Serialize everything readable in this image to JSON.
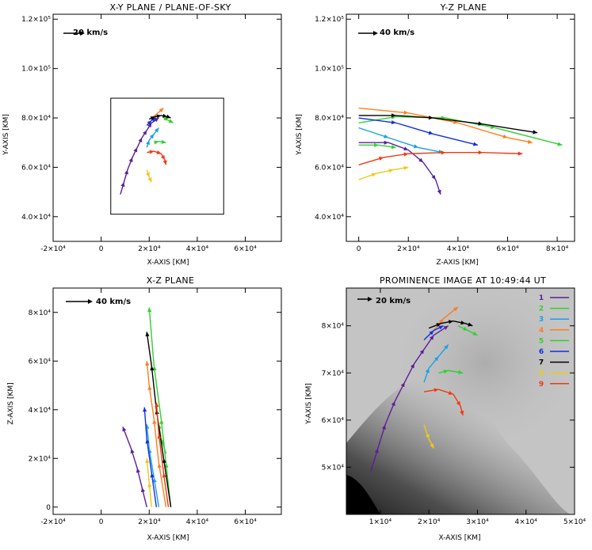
{
  "chart_data": [
    {
      "type": "line",
      "title": "X-Y PLANE / PLANE-OF-SKY",
      "xlabel": "X-AXIS [KM]",
      "ylabel": "Y-AXIS [KM]",
      "velocity_label": "20 km/s",
      "xlim": [
        -20000,
        75000
      ],
      "ylim": [
        30000,
        122000
      ],
      "xticks": [
        {
          "v": -20000,
          "label": "-2×10⁴"
        },
        {
          "v": 0,
          "label": "0"
        },
        {
          "v": 20000,
          "label": "2×10⁴"
        },
        {
          "v": 40000,
          "label": "4×10⁴"
        },
        {
          "v": 60000,
          "label": "6×10⁴"
        }
      ],
      "yticks": [
        {
          "v": 40000,
          "label": "4.0×10⁴"
        },
        {
          "v": 60000,
          "label": "6.0×10⁴"
        },
        {
          "v": 80000,
          "label": "8.0×10⁴"
        },
        {
          "v": 100000,
          "label": "1.0×10⁵"
        },
        {
          "v": 120000,
          "label": "1.2×10⁵"
        }
      ],
      "box": {
        "x0": 4000,
        "x1": 51000,
        "y0": 41000,
        "y1": 88000
      },
      "series": [
        {
          "name": "1",
          "color": "#5a1f9a",
          "points": [
            [
              8000,
              49000
            ],
            [
              9500,
              54000
            ],
            [
              11000,
              59000
            ],
            [
              13000,
              64000
            ],
            [
              15000,
              68000
            ],
            [
              17000,
              72000
            ],
            [
              19000,
              75000
            ],
            [
              21000,
              78000
            ],
            [
              24000,
              80000
            ]
          ]
        },
        {
          "name": "2",
          "color": "#30d030",
          "points": [
            [
              22000,
              70000
            ],
            [
              24000,
              70500
            ],
            [
              27000,
              70000
            ]
          ]
        },
        {
          "name": "3",
          "color": "#19a0e8",
          "points": [
            [
              19000,
              68000
            ],
            [
              20000,
              71000
            ],
            [
              22000,
              73500
            ],
            [
              24000,
              76000
            ]
          ]
        },
        {
          "name": "4",
          "color": "#ff7d1a",
          "points": [
            [
              21000,
              79000
            ],
            [
              23000,
              81500
            ],
            [
              26000,
              84000
            ]
          ]
        },
        {
          "name": "5",
          "color": "#30d030",
          "points": [
            [
              26000,
              80000
            ],
            [
              28000,
              79000
            ],
            [
              30000,
              78000
            ]
          ]
        },
        {
          "name": "6",
          "color": "#1030e0",
          "points": [
            [
              19000,
              77000
            ],
            [
              21000,
              79000
            ],
            [
              23000,
              80000
            ]
          ]
        },
        {
          "name": "7",
          "color": "#000000",
          "points": [
            [
              20000,
              79500
            ],
            [
              22500,
              80500
            ],
            [
              25000,
              81000
            ],
            [
              27500,
              80500
            ],
            [
              29000,
              80000
            ]
          ]
        },
        {
          "name": "8",
          "color": "#f0c818",
          "points": [
            [
              19000,
              59000
            ],
            [
              20000,
              56000
            ],
            [
              21000,
              54000
            ]
          ]
        },
        {
          "name": "9",
          "color": "#ee3a12",
          "points": [
            [
              19000,
              66000
            ],
            [
              22000,
              66500
            ],
            [
              25000,
              65500
            ],
            [
              26500,
              63000
            ],
            [
              27000,
              61000
            ]
          ]
        }
      ]
    },
    {
      "type": "line",
      "title": "Y-Z PLANE",
      "xlabel": "Z-AXIS [KM]",
      "ylabel": "Y-AXIS [KM]",
      "velocity_label": "40 km/s",
      "xlim": [
        -5000,
        87000
      ],
      "ylim": [
        30000,
        122000
      ],
      "xticks": [
        {
          "v": 0,
          "label": "0"
        },
        {
          "v": 20000,
          "label": "2×10⁴"
        },
        {
          "v": 40000,
          "label": "4×10⁴"
        },
        {
          "v": 60000,
          "label": "6×10⁴"
        },
        {
          "v": 80000,
          "label": "8×10⁴"
        }
      ],
      "yticks": [
        {
          "v": 40000,
          "label": "4.0×10⁴"
        },
        {
          "v": 60000,
          "label": "6.0×10⁴"
        },
        {
          "v": 80000,
          "label": "8.0×10⁴"
        },
        {
          "v": 100000,
          "label": "1.0×10⁵"
        },
        {
          "v": 120000,
          "label": "1.2×10⁵"
        }
      ],
      "series": [
        {
          "name": "1",
          "color": "#5a1f9a",
          "points": [
            [
              0,
              70000
            ],
            [
              12000,
              70000
            ],
            [
              20000,
              67000
            ],
            [
              26000,
              62000
            ],
            [
              31000,
              55000
            ],
            [
              33000,
              49000
            ]
          ]
        },
        {
          "name": "2",
          "color": "#30d030",
          "points": [
            [
              0,
              69000
            ],
            [
              8000,
              69000
            ],
            [
              15000,
              68000
            ]
          ]
        },
        {
          "name": "3",
          "color": "#19a0e8",
          "points": [
            [
              0,
              76000
            ],
            [
              12000,
              72000
            ],
            [
              24000,
              68000
            ],
            [
              34000,
              66000
            ]
          ]
        },
        {
          "name": "4",
          "color": "#ff7d1a",
          "points": [
            [
              0,
              84000
            ],
            [
              20000,
              82000
            ],
            [
              40000,
              78000
            ],
            [
              60000,
              72000
            ],
            [
              70000,
              70000
            ]
          ]
        },
        {
          "name": "5",
          "color": "#30d030",
          "points": [
            [
              0,
              78000
            ],
            [
              15000,
              80500
            ],
            [
              35000,
              80000
            ],
            [
              55000,
              76000
            ],
            [
              82000,
              69000
            ]
          ]
        },
        {
          "name": "6",
          "color": "#1030e0",
          "points": [
            [
              0,
              80000
            ],
            [
              15000,
              78000
            ],
            [
              30000,
              73500
            ],
            [
              48000,
              69000
            ]
          ]
        },
        {
          "name": "7",
          "color": "#000000",
          "points": [
            [
              0,
              81000
            ],
            [
              15000,
              81000
            ],
            [
              30000,
              80000
            ],
            [
              50000,
              77500
            ],
            [
              72000,
              74000
            ]
          ]
        },
        {
          "name": "8",
          "color": "#f0c818",
          "points": [
            [
              0,
              55000
            ],
            [
              7000,
              57500
            ],
            [
              14000,
              59000
            ],
            [
              20000,
              60000
            ]
          ]
        },
        {
          "name": "9",
          "color": "#ee3a12",
          "points": [
            [
              0,
              61000
            ],
            [
              10000,
              64000
            ],
            [
              20000,
              65500
            ],
            [
              35000,
              66000
            ],
            [
              50000,
              66000
            ],
            [
              66000,
              65500
            ]
          ]
        }
      ]
    },
    {
      "type": "line",
      "title": "X-Z PLANE",
      "xlabel": "X-AXIS [KM]",
      "ylabel": "Z-AXIS [KM]",
      "velocity_label": "40 km/s",
      "xlim": [
        -20000,
        75000
      ],
      "ylim": [
        -3000,
        90000
      ],
      "xticks": [
        {
          "v": -20000,
          "label": "-2×10⁴"
        },
        {
          "v": 0,
          "label": "0"
        },
        {
          "v": 20000,
          "label": "2×10⁴"
        },
        {
          "v": 40000,
          "label": "4×10⁴"
        },
        {
          "v": 60000,
          "label": "6×10⁴"
        }
      ],
      "yticks": [
        {
          "v": 0,
          "label": "0"
        },
        {
          "v": 20000,
          "label": "2×10⁴"
        },
        {
          "v": 40000,
          "label": "4×10⁴"
        },
        {
          "v": 60000,
          "label": "6×10⁴"
        },
        {
          "v": 80000,
          "label": "8×10⁴"
        }
      ],
      "series": [
        {
          "name": "1",
          "color": "#5a1f9a",
          "points": [
            [
              19000,
              0
            ],
            [
              17000,
              8000
            ],
            [
              15000,
              16000
            ],
            [
              12500,
              24000
            ],
            [
              9000,
              33000
            ]
          ]
        },
        {
          "name": "2",
          "color": "#30d030",
          "points": [
            [
              27000,
              22000
            ],
            [
              25000,
              28000
            ],
            [
              24000,
              34000
            ]
          ]
        },
        {
          "name": "3",
          "color": "#19a0e8",
          "points": [
            [
              24000,
              0
            ],
            [
              22000,
              12000
            ],
            [
              20000,
              24000
            ],
            [
              19000,
              34000
            ]
          ]
        },
        {
          "name": "4",
          "color": "#ff7d1a",
          "points": [
            [
              27000,
              0
            ],
            [
              24000,
              18000
            ],
            [
              22000,
              36000
            ],
            [
              20000,
              50000
            ],
            [
              19000,
              60000
            ]
          ]
        },
        {
          "name": "5",
          "color": "#30d030",
          "points": [
            [
              29000,
              0
            ],
            [
              27000,
              18000
            ],
            [
              25000,
              36000
            ],
            [
              22000,
              58000
            ],
            [
              20000,
              82000
            ]
          ]
        },
        {
          "name": "6",
          "color": "#1030e0",
          "points": [
            [
              23000,
              0
            ],
            [
              21000,
              14000
            ],
            [
              19000,
              28000
            ],
            [
              18000,
              41000
            ]
          ]
        },
        {
          "name": "7",
          "color": "#000000",
          "points": [
            [
              29000,
              0
            ],
            [
              26000,
              20000
            ],
            [
              23000,
              40000
            ],
            [
              21000,
              58000
            ],
            [
              19000,
              72000
            ]
          ]
        },
        {
          "name": "8",
          "color": "#f0c818",
          "points": [
            [
              21000,
              0
            ],
            [
              20000,
              10000
            ],
            [
              19000,
              20000
            ]
          ]
        },
        {
          "name": "9",
          "color": "#ee3a12",
          "points": [
            [
              28000,
              0
            ],
            [
              26000,
              14000
            ],
            [
              24000,
              30000
            ],
            [
              23000,
              43000
            ]
          ]
        }
      ]
    },
    {
      "type": "line",
      "title": "PROMINENCE IMAGE AT 10:49:44 UT",
      "xlabel": "X-AXIS [KM]",
      "ylabel": "Y-AXIS [KM]",
      "velocity_label": "20 km/s",
      "xlim": [
        3000,
        50000
      ],
      "ylim": [
        40000,
        88000
      ],
      "xticks": [
        {
          "v": 10000,
          "label": "1×10⁴"
        },
        {
          "v": 20000,
          "label": "2×10⁴"
        },
        {
          "v": 30000,
          "label": "3×10⁴"
        },
        {
          "v": 40000,
          "label": "4×10⁴"
        },
        {
          "v": 50000,
          "label": "5×10⁴"
        }
      ],
      "yticks": [
        {
          "v": 50000,
          "label": "5×10⁴"
        },
        {
          "v": 60000,
          "label": "6×10⁴"
        },
        {
          "v": 70000,
          "label": "7×10⁴"
        },
        {
          "v": 80000,
          "label": "8×10⁴"
        }
      ],
      "legend": [
        {
          "name": "1",
          "color": "#5a1f9a"
        },
        {
          "name": "2",
          "color": "#30d030"
        },
        {
          "name": "3",
          "color": "#19a0e8"
        },
        {
          "name": "4",
          "color": "#ff7d1a"
        },
        {
          "name": "5",
          "color": "#30d030"
        },
        {
          "name": "6",
          "color": "#1030e0"
        },
        {
          "name": "7",
          "color": "#000000"
        },
        {
          "name": "8",
          "color": "#f0c818"
        },
        {
          "name": "9",
          "color": "#ee3a12"
        }
      ],
      "series": [
        {
          "name": "1",
          "color": "#5a1f9a",
          "points": [
            [
              8000,
              49000
            ],
            [
              9500,
              54000
            ],
            [
              11000,
              59000
            ],
            [
              13000,
              64000
            ],
            [
              15000,
              68000
            ],
            [
              17000,
              72000
            ],
            [
              19000,
              75000
            ],
            [
              21000,
              78000
            ],
            [
              24000,
              80000
            ]
          ]
        },
        {
          "name": "2",
          "color": "#30d030",
          "points": [
            [
              22000,
              70000
            ],
            [
              24000,
              70500
            ],
            [
              27000,
              70000
            ]
          ]
        },
        {
          "name": "3",
          "color": "#19a0e8",
          "points": [
            [
              19000,
              68000
            ],
            [
              20000,
              71000
            ],
            [
              22000,
              73500
            ],
            [
              24000,
              76000
            ]
          ]
        },
        {
          "name": "4",
          "color": "#ff7d1a",
          "points": [
            [
              21000,
              79000
            ],
            [
              23000,
              81500
            ],
            [
              26000,
              84000
            ]
          ]
        },
        {
          "name": "5",
          "color": "#30d030",
          "points": [
            [
              26000,
              80000
            ],
            [
              28000,
              79000
            ],
            [
              30000,
              78000
            ]
          ]
        },
        {
          "name": "6",
          "color": "#1030e0",
          "points": [
            [
              19000,
              77000
            ],
            [
              21000,
              79000
            ],
            [
              23000,
              80000
            ]
          ]
        },
        {
          "name": "7",
          "color": "#000000",
          "points": [
            [
              20000,
              79500
            ],
            [
              22500,
              80500
            ],
            [
              25000,
              81000
            ],
            [
              27500,
              80500
            ],
            [
              29000,
              80000
            ]
          ]
        },
        {
          "name": "8",
          "color": "#f0c818",
          "points": [
            [
              19000,
              59000
            ],
            [
              20000,
              56000
            ],
            [
              21000,
              54000
            ]
          ]
        },
        {
          "name": "9",
          "color": "#ee3a12",
          "points": [
            [
              19000,
              66000
            ],
            [
              22000,
              66500
            ],
            [
              25000,
              65500
            ],
            [
              26500,
              63000
            ],
            [
              27000,
              61000
            ]
          ]
        }
      ]
    }
  ]
}
